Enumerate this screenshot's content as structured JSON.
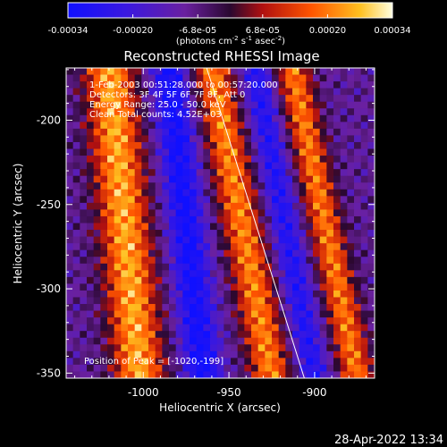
{
  "colorbar": {
    "ticks": [
      "-0.00034",
      "-0.00020",
      "-6.8e-05",
      "6.8e-05",
      "0.00020",
      "0.00034"
    ],
    "unit_main": "(photons cm",
    "unit_sup1": "-2",
    "unit_mid1": " s",
    "unit_sup2": "-1",
    "unit_mid2": " asec",
    "unit_sup3": "-2",
    "unit_end": ")"
  },
  "annotations": {
    "time_range": "1-Feb-2003 00:51:28.000 to 00:57:20.000",
    "detectors": "Detectors: 3F 4F 5F 6F 7F 8F, Att 0",
    "energy": "Energy Range: 25.0 - 50.0 keV",
    "clean": "Clean     Total counts: 4.52E+03",
    "peak": "Position of Peak = [-1020,-199]"
  },
  "footer": {
    "date": "28-Apr-2022 13:34"
  },
  "colors": {
    "background": "#000000",
    "foreground": "#ffffff",
    "colormap": [
      "#1010ff",
      "#4020d0",
      "#6a20a0",
      "#3a0a40",
      "#c01010",
      "#ff6000",
      "#ffd020",
      "#ffffe0"
    ]
  },
  "chart_data": {
    "type": "heatmap",
    "title": "Reconstructed RHESSI Image",
    "xlabel": "Heliocentric X (arcsec)",
    "ylabel": "Heliocentric Y (arcsec)",
    "x_ticks": [
      "-1000",
      "-950",
      "-900"
    ],
    "y_ticks": [
      "-200",
      "-250",
      "-300",
      "-350"
    ],
    "xlim": [
      -1045,
      -865
    ],
    "ylim": [
      -353,
      -169
    ],
    "x_tick_values": [
      -1000,
      -950,
      -900
    ],
    "y_tick_values": [
      -200,
      -250,
      -300,
      -350
    ],
    "colorbar_range": [
      -0.00034,
      0.00034
    ],
    "limb_line": [
      [
        -963,
        -169
      ],
      [
        -906,
        -353
      ]
    ],
    "peak_position": [
      -1020,
      -199
    ],
    "ridges": [
      {
        "x_at_top": -1020,
        "x_at_bottom": -1002,
        "width": 15,
        "amplitude": 0.00034
      },
      {
        "x_at_top": -960,
        "x_at_bottom": -925,
        "width": 12,
        "amplitude": 0.0003
      },
      {
        "x_at_top": -913,
        "x_at_bottom": -875,
        "width": 10,
        "amplitude": 0.00029
      }
    ],
    "troughs": [
      {
        "x_at_top": -985,
        "x_at_bottom": -965,
        "width": 11,
        "amplitude": -0.00025
      },
      {
        "x_at_top": -935,
        "x_at_bottom": -900,
        "width": 9,
        "amplitude": -0.0002
      }
    ],
    "pixel_size_arcsec": 4
  }
}
